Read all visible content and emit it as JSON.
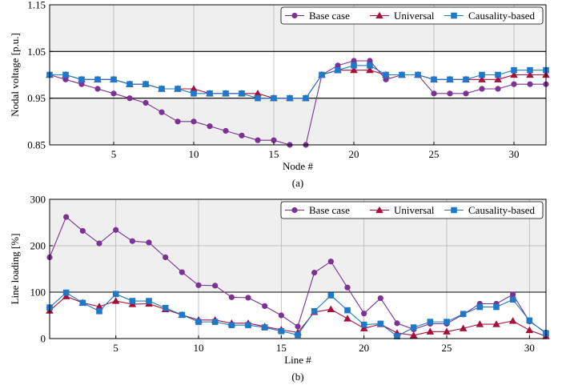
{
  "chart_data": [
    {
      "type": "line",
      "caption": "(a)",
      "xlabel": "Node #",
      "ylabel": "Nodal voltage [p.u.]",
      "xlim": [
        1,
        32
      ],
      "ylim": [
        0.85,
        1.15
      ],
      "xticks": [
        5,
        10,
        15,
        20,
        25,
        30
      ],
      "yticks": [
        0.85,
        0.95,
        1.05,
        1.15
      ],
      "ytick_labels": [
        "0.85",
        "0.95",
        "1.05",
        "1.15"
      ],
      "shaded_above": 1.05,
      "shaded_below": 0.95,
      "grid": true,
      "legend_position": "top-right",
      "x": [
        1,
        2,
        3,
        4,
        5,
        6,
        7,
        8,
        9,
        10,
        11,
        12,
        13,
        14,
        15,
        16,
        17,
        18,
        19,
        20,
        21,
        22,
        23,
        24,
        25,
        26,
        27,
        28,
        29,
        30,
        31,
        32
      ],
      "series": [
        {
          "name": "Base case",
          "color": "#7b3294",
          "marker": "circle",
          "values": [
            1.0,
            0.99,
            0.98,
            0.97,
            0.96,
            0.95,
            0.94,
            0.92,
            0.9,
            0.9,
            0.89,
            0.88,
            0.87,
            0.86,
            0.86,
            0.85,
            0.85,
            1.0,
            1.02,
            1.03,
            1.03,
            0.99,
            1.0,
            1.0,
            0.96,
            0.96,
            0.96,
            0.97,
            0.97,
            0.98,
            0.98,
            0.98
          ]
        },
        {
          "name": "Universal",
          "color": "#a50f3a",
          "marker": "triangle",
          "values": [
            1.0,
            1.0,
            0.99,
            0.99,
            0.99,
            0.98,
            0.98,
            0.97,
            0.97,
            0.97,
            0.96,
            0.96,
            0.96,
            0.96,
            0.95,
            0.95,
            0.95,
            1.0,
            1.01,
            1.01,
            1.01,
            1.0,
            1.0,
            1.0,
            0.99,
            0.99,
            0.99,
            0.99,
            0.99,
            1.0,
            1.0,
            1.0
          ]
        },
        {
          "name": "Causality-based",
          "color": "#1f78c8",
          "marker": "square",
          "values": [
            1.0,
            1.0,
            0.99,
            0.99,
            0.99,
            0.98,
            0.98,
            0.97,
            0.97,
            0.96,
            0.96,
            0.96,
            0.96,
            0.95,
            0.95,
            0.95,
            0.95,
            1.0,
            1.01,
            1.02,
            1.02,
            1.0,
            1.0,
            1.0,
            0.99,
            0.99,
            0.99,
            1.0,
            1.0,
            1.01,
            1.01,
            1.01
          ]
        }
      ]
    },
    {
      "type": "line",
      "caption": "(b)",
      "xlabel": "Line #",
      "ylabel": "Line loading [%]",
      "xlim": [
        1,
        31
      ],
      "ylim": [
        0,
        300
      ],
      "xticks": [
        5,
        10,
        15,
        20,
        25,
        30
      ],
      "yticks": [
        0,
        100,
        200,
        300
      ],
      "ytick_labels": [
        "0",
        "100",
        "200",
        "300"
      ],
      "shaded_above": 100,
      "grid": true,
      "legend_position": "top-right",
      "x": [
        1,
        2,
        3,
        4,
        5,
        6,
        7,
        8,
        9,
        10,
        11,
        12,
        13,
        14,
        15,
        16,
        17,
        18,
        19,
        20,
        21,
        22,
        23,
        24,
        25,
        26,
        27,
        28,
        29,
        30,
        31
      ],
      "series": [
        {
          "name": "Base case",
          "color": "#7b3294",
          "marker": "circle",
          "values": [
            175,
            262,
            232,
            205,
            234,
            210,
            207,
            175,
            143,
            115,
            114,
            89,
            88,
            70,
            50,
            26,
            142,
            166,
            110,
            54,
            87,
            33,
            20,
            32,
            32,
            52,
            75,
            75,
            95,
            37,
            13
          ]
        },
        {
          "name": "Universal",
          "color": "#a50f3a",
          "marker": "triangle",
          "values": [
            60,
            91,
            77,
            69,
            81,
            74,
            75,
            63,
            51,
            40,
            40,
            33,
            33,
            26,
            19,
            13,
            57,
            63,
            43,
            22,
            31,
            12,
            7,
            15,
            15,
            22,
            31,
            31,
            38,
            18,
            5
          ]
        },
        {
          "name": "Causality-based",
          "color": "#1f78c8",
          "marker": "square",
          "values": [
            67,
            99,
            77,
            59,
            96,
            81,
            81,
            66,
            51,
            36,
            36,
            29,
            29,
            24,
            16,
            8,
            59,
            93,
            61,
            30,
            32,
            5,
            24,
            36,
            36,
            53,
            68,
            68,
            84,
            39,
            11
          ]
        }
      ]
    }
  ]
}
